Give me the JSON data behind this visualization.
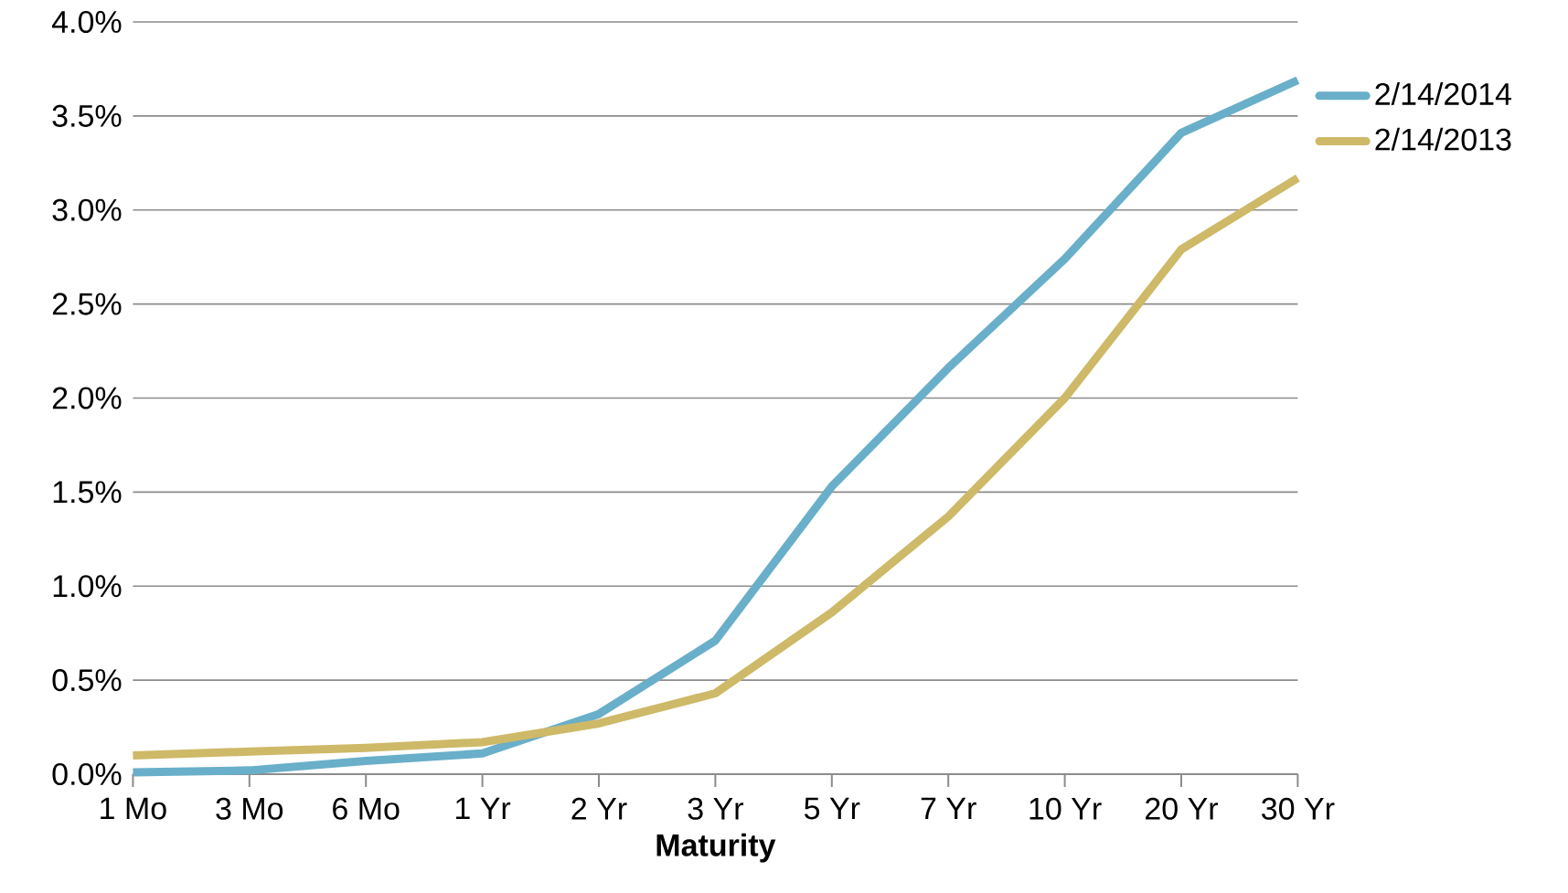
{
  "chart_data": {
    "type": "line",
    "xlabel": "Maturity",
    "categories": [
      "1 Mo",
      "3 Mo",
      "6 Mo",
      "1 Yr",
      "2 Yr",
      "3 Yr",
      "5 Yr",
      "7 Yr",
      "10 Yr",
      "20 Yr",
      "30 Yr"
    ],
    "series": [
      {
        "name": "2/14/2014",
        "color": "#6aafca",
        "values": [
          0.01,
          0.02,
          0.07,
          0.11,
          0.32,
          0.71,
          1.53,
          2.16,
          2.74,
          3.41,
          3.69
        ]
      },
      {
        "name": "2/14/2013",
        "color": "#cdb968",
        "values": [
          0.1,
          0.12,
          0.14,
          0.17,
          0.27,
          0.43,
          0.86,
          1.37,
          2.0,
          2.79,
          3.17
        ]
      }
    ],
    "ylim": [
      0,
      4
    ],
    "yticks": [
      {
        "value": 0,
        "label": "0.0%"
      },
      {
        "value": 0.5,
        "label": "0.5%"
      },
      {
        "value": 1,
        "label": "1.0%"
      },
      {
        "value": 1.5,
        "label": "1.5%"
      },
      {
        "value": 2,
        "label": "2.0%"
      },
      {
        "value": 2.5,
        "label": "2.5%"
      },
      {
        "value": 3,
        "label": "3.0%"
      },
      {
        "value": 3.5,
        "label": "3.5%"
      },
      {
        "value": 4,
        "label": "4.0%"
      }
    ],
    "grid": "y",
    "legend": "right",
    "marker": "none",
    "line_style": "solid"
  }
}
